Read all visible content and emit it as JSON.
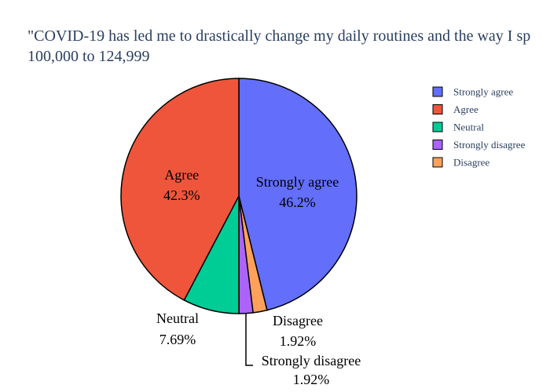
{
  "chart_data": {
    "type": "pie",
    "title": "\"COVID-19 has led me to drastically change my daily routines and the way I sp",
    "subtitle": "100,000 to 124,999",
    "slices": [
      {
        "label": "Strongly agree",
        "percent_label": "46.2%",
        "value": 46.15,
        "color": "#636efa"
      },
      {
        "label": "Disagree",
        "percent_label": "1.92%",
        "value": 1.92,
        "color": "#ffa15a"
      },
      {
        "label": "Strongly disagree",
        "percent_label": "1.92%",
        "value": 1.92,
        "color": "#ab63fa"
      },
      {
        "label": "Neutral",
        "percent_label": "7.69%",
        "value": 7.69,
        "color": "#00cc96"
      },
      {
        "label": "Agree",
        "percent_label": "42.3%",
        "value": 42.31,
        "color": "#ef553b"
      }
    ],
    "legend": {
      "placement": "top-right",
      "items": [
        {
          "label": "Strongly agree",
          "color": "#636efa"
        },
        {
          "label": "Agree",
          "color": "#ef553b"
        },
        {
          "label": "Neutral",
          "color": "#00cc96"
        },
        {
          "label": "Strongly disagree",
          "color": "#ab63fa"
        },
        {
          "label": "Disagree",
          "color": "#ffa15a"
        }
      ]
    }
  }
}
